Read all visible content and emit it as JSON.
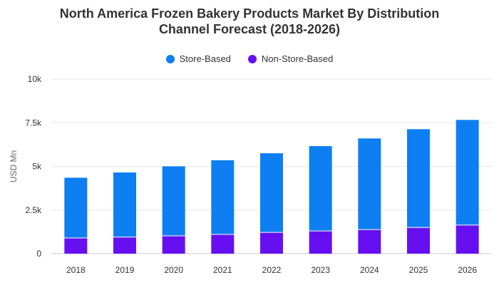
{
  "chart_data": {
    "type": "bar",
    "stacked": true,
    "title_line1": "North America Frozen Bakery Products Market By Distribution",
    "title_line2": "Channel Forecast (2018-2026)",
    "xlabel": "",
    "ylabel": "USD Mn",
    "ylim": [
      0,
      10000
    ],
    "yticks": [
      0,
      2500,
      5000,
      7500,
      10000
    ],
    "ytick_labels": [
      "0",
      "2.5k",
      "5k",
      "7.5k",
      "10k"
    ],
    "grid": true,
    "legend_position": "top-center",
    "categories": [
      "2018",
      "2019",
      "2020",
      "2021",
      "2022",
      "2023",
      "2024",
      "2025",
      "2026"
    ],
    "series": [
      {
        "name": "Non-Store-Based",
        "color": "#6610f2",
        "values": [
          900,
          950,
          1020,
          1100,
          1220,
          1300,
          1380,
          1500,
          1640
        ]
      },
      {
        "name": "Store-Based",
        "color": "#0d7ff2",
        "values": [
          3450,
          3700,
          3980,
          4250,
          4530,
          4860,
          5220,
          5630,
          6020
        ]
      }
    ]
  }
}
